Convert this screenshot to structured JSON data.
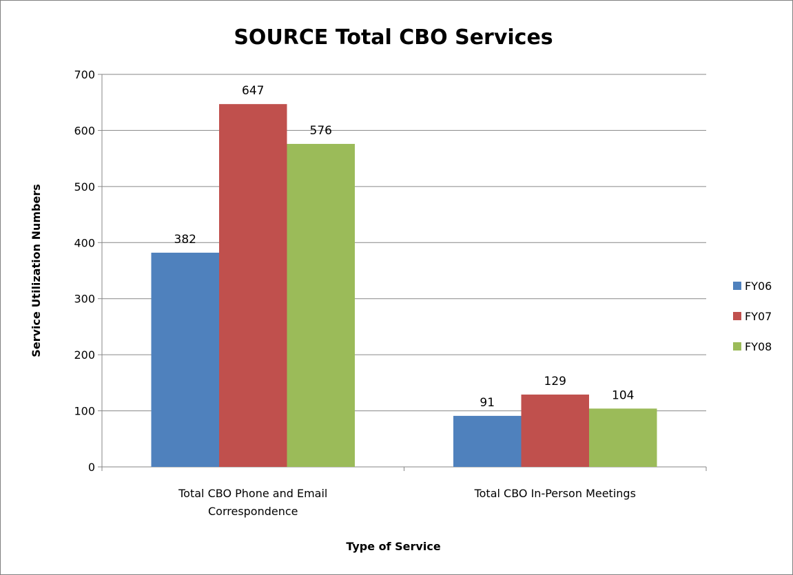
{
  "chart_data": {
    "type": "bar",
    "title": "SOURCE Total CBO Services",
    "xlabel": "Type of Service",
    "ylabel": "Service Utilization Numbers",
    "categories": [
      [
        "Total CBO Phone and Email",
        "Correspondence"
      ],
      [
        "Total CBO In-Person Meetings"
      ]
    ],
    "series": [
      {
        "name": "FY06",
        "color": "#4f81bd",
        "values": [
          382,
          91
        ]
      },
      {
        "name": "FY07",
        "color": "#c0504d",
        "values": [
          647,
          129
        ]
      },
      {
        "name": "FY08",
        "color": "#9bbb59",
        "values": [
          576,
          104
        ]
      }
    ],
    "ylim": [
      0,
      700
    ],
    "yticks": [
      0,
      100,
      200,
      300,
      400,
      500,
      600,
      700
    ],
    "grid": true,
    "legend": "right"
  }
}
